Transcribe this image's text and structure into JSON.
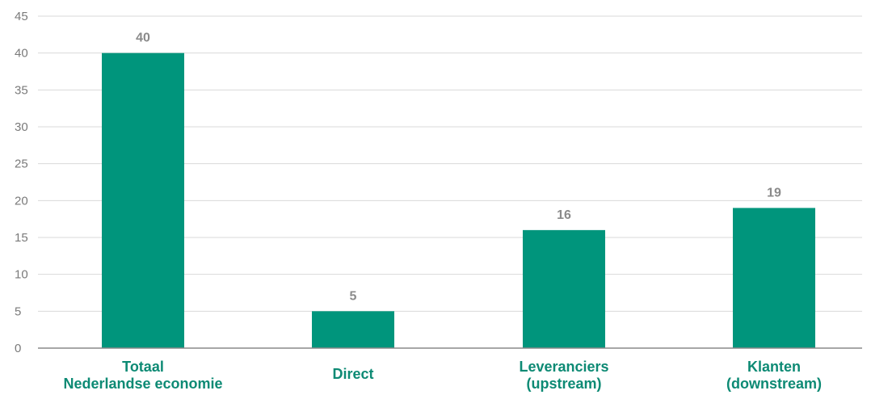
{
  "chart_data": {
    "type": "bar",
    "categories": [
      [
        "Totaal",
        "Nederlandse economie"
      ],
      [
        "Direct"
      ],
      [
        "Leveranciers",
        "(upstream)"
      ],
      [
        "Klanten",
        "(downstream)"
      ]
    ],
    "values": [
      40,
      5,
      16,
      19
    ],
    "value_labels": [
      "40",
      "5",
      "16",
      "19"
    ],
    "y_ticks": [
      "0",
      "5",
      "10",
      "15",
      "20",
      "25",
      "30",
      "35",
      "40",
      "45"
    ],
    "ylim": [
      0,
      45
    ],
    "grid": true,
    "title": "",
    "xlabel": "",
    "ylabel": "",
    "colors": {
      "bar": "#00957c",
      "category_text": "#0d8a74",
      "value_text": "#8a8a8a",
      "tick_text": "#7a7a7a",
      "grid": "#d9d9d9"
    }
  }
}
